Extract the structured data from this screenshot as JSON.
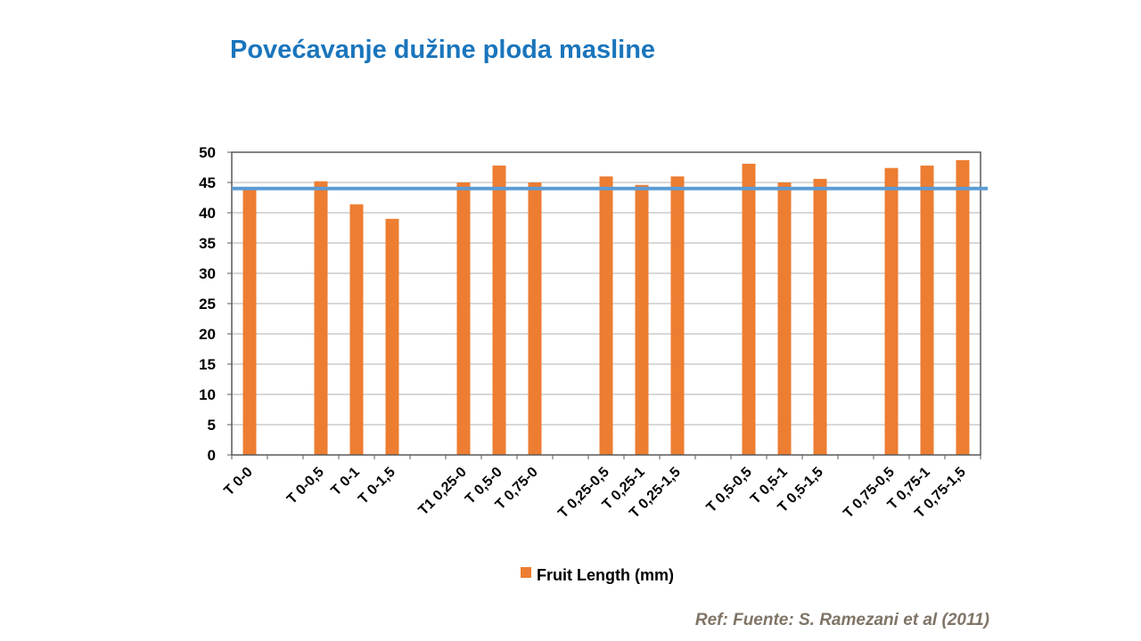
{
  "title": "Povećavanje dužine ploda masline",
  "reference": "Ref: Fuente: S. Ramezani et al (2011)",
  "colors": {
    "title": "#1a75bc",
    "bar": "#ed7d31",
    "reference_line": "#5b9bd5",
    "reference_text": "#7f7466"
  },
  "chart_data": {
    "type": "bar",
    "categories": [
      "T 0-0",
      "",
      "T 0-0,5",
      "T 0-1",
      "T 0-1,5",
      "",
      "T1  0,25-0",
      "T 0,5-0",
      "T 0,75-0",
      "",
      "T 0,25-0,5",
      "T 0,25-1",
      "T 0,25-1,5",
      "",
      "T 0,5-0,5",
      "T 0,5-1",
      "T 0,5-1,5",
      "",
      "T 0,75-0,5",
      "T 0,75-1",
      "T 0,75-1,5"
    ],
    "series": [
      {
        "name": "Fruit Length (mm)",
        "values": [
          44,
          null,
          45.2,
          41.4,
          39,
          null,
          45,
          47.8,
          45,
          null,
          46,
          44.6,
          46,
          null,
          48.1,
          45,
          45.6,
          null,
          47.4,
          47.8,
          48.7
        ]
      }
    ],
    "reference_line": 44,
    "ylim": [
      0,
      50
    ],
    "yticks": [
      0,
      5,
      10,
      15,
      20,
      25,
      30,
      35,
      40,
      45,
      50
    ],
    "grid": true,
    "legend": "bottom"
  }
}
